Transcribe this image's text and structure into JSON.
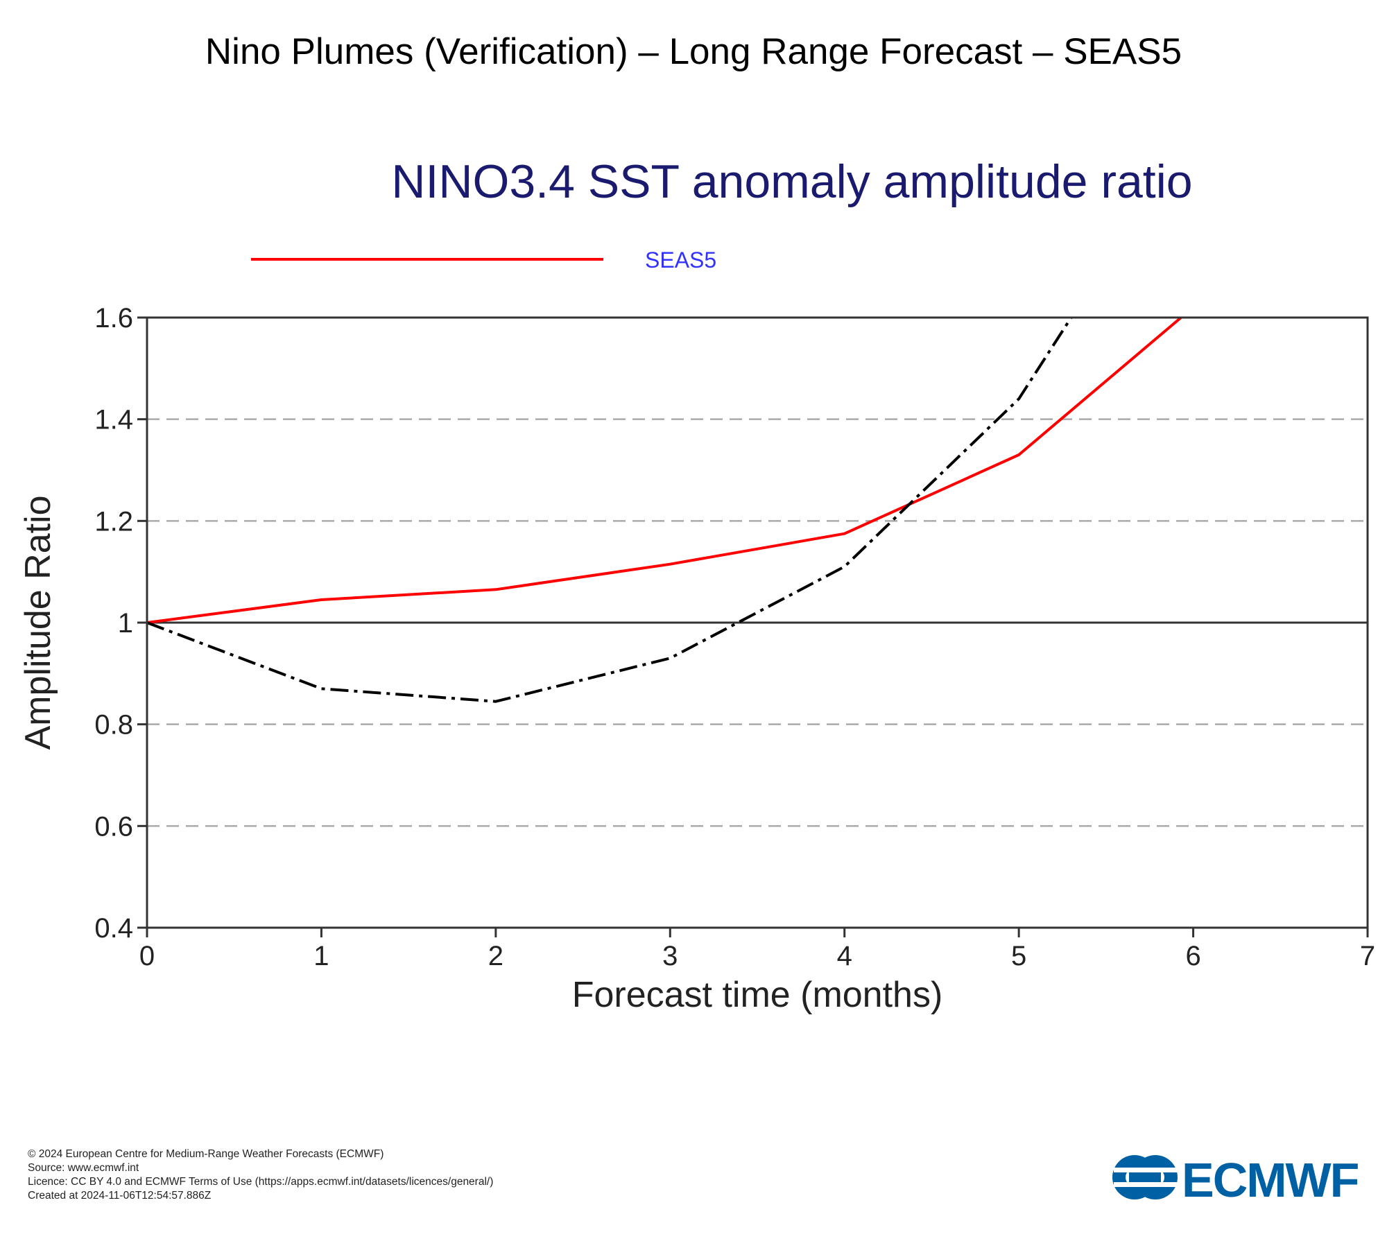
{
  "page": {
    "title": "Nino Plumes (Verification) – Long Range Forecast – SEAS5"
  },
  "chart_data": {
    "type": "line",
    "title": "NINO3.4 SST anomaly amplitude ratio",
    "xlabel": "Forecast time (months)",
    "ylabel": "Amplitude Ratio",
    "xlim": [
      0,
      7
    ],
    "ylim": [
      0.4,
      1.6
    ],
    "x_ticks": [
      0,
      1,
      2,
      3,
      4,
      5,
      6,
      7
    ],
    "y_ticks": [
      0.4,
      0.6,
      0.8,
      1,
      1.2,
      1.4,
      1.6
    ],
    "y_tick_labels": [
      "0.4",
      "0.6",
      "0.8",
      "1",
      "1.2",
      "1.4",
      "1.6"
    ],
    "grid": "horizontal dashed",
    "reference_line": 1,
    "legend_position": "top",
    "series": [
      {
        "name": "SEAS5",
        "color": "#ff0000",
        "style": "solid",
        "x": [
          0,
          1,
          2,
          3,
          4,
          5,
          5.93
        ],
        "y": [
          1.0,
          1.045,
          1.065,
          1.115,
          1.175,
          1.33,
          1.6
        ]
      },
      {
        "color": "#000000",
        "style": "dash-dot",
        "x": [
          0,
          1,
          2,
          3,
          4,
          5,
          5.3
        ],
        "y": [
          1.0,
          0.87,
          0.845,
          0.93,
          1.11,
          1.44,
          1.6
        ]
      }
    ]
  },
  "footer": {
    "copyright": "© 2024 European Centre for Medium-Range Weather Forecasts (ECMWF)",
    "source": "Source: www.ecmwf.int",
    "licence": "Licence: CC BY 4.0 and ECMWF Terms of Use (https://apps.ecmwf.int/datasets/licences/general/)",
    "created": "Created at 2024-11-06T12:54:57.886Z"
  },
  "logo": {
    "text": "ECMWF",
    "color": "#0060a4",
    "icon": "ecmwf-logo-icon"
  }
}
